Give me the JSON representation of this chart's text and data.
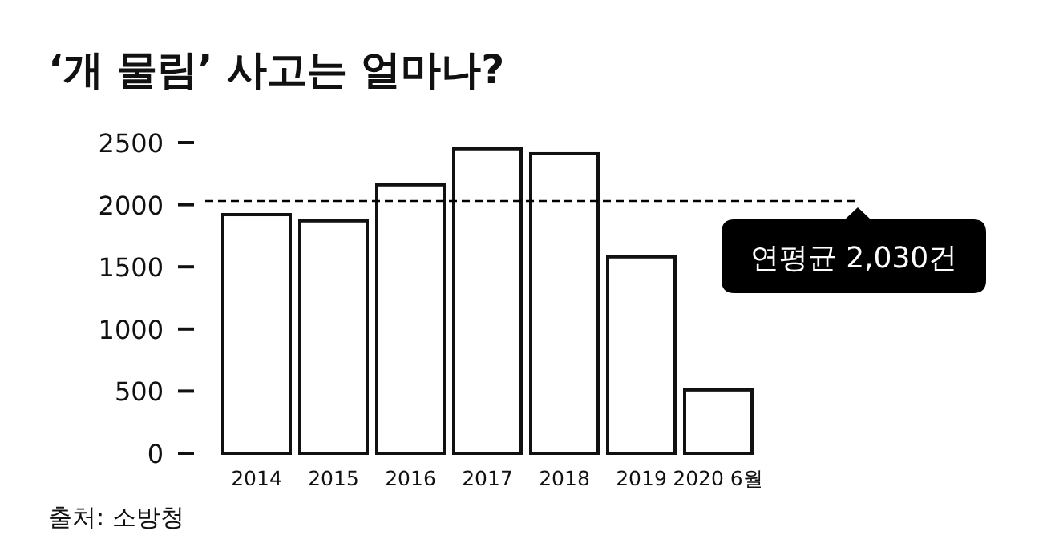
{
  "chart_data": {
    "type": "bar",
    "title": "‘개 물림’ 사고는 얼마나?",
    "categories": [
      "2014",
      "2015",
      "2016",
      "2017",
      "2018",
      "2019",
      "2020 6월"
    ],
    "values": [
      1920,
      1870,
      2160,
      2450,
      2410,
      1580,
      510
    ],
    "color": "#ffffff",
    "ylim": [
      0,
      2500
    ],
    "yticks": [
      0,
      500,
      1000,
      1500,
      2000,
      2500
    ],
    "grid": false,
    "ref_lines": [
      {
        "axis": "y",
        "value": 2030,
        "label": "연평균 2,030건",
        "line_style": "dashed",
        "color": "#000000"
      }
    ],
    "annotations": [
      "출처: 소방청"
    ]
  }
}
